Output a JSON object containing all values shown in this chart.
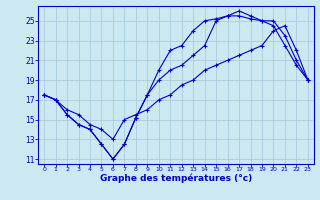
{
  "title": "",
  "xlabel": "Graphe des températures (°c)",
  "ylabel": "",
  "bg_color": "#cce8f0",
  "grid_color": "#aaccdd",
  "line_color": "#0000cc",
  "xlim": [
    -0.5,
    23.5
  ],
  "ylim": [
    10.5,
    26.5
  ],
  "xticks": [
    0,
    1,
    2,
    3,
    4,
    5,
    6,
    7,
    8,
    9,
    10,
    11,
    12,
    13,
    14,
    15,
    16,
    17,
    18,
    19,
    20,
    21,
    22,
    23
  ],
  "yticks": [
    11,
    13,
    15,
    17,
    19,
    21,
    23,
    25
  ],
  "line1_x": [
    0,
    1,
    2,
    3,
    4,
    5,
    6,
    7,
    8,
    9,
    10,
    11,
    12,
    13,
    14,
    15,
    16,
    17,
    18,
    19,
    20,
    21,
    22,
    23
  ],
  "line1_y": [
    17.5,
    17.0,
    15.5,
    14.5,
    14.0,
    12.5,
    11.0,
    12.5,
    15.2,
    17.5,
    19.0,
    20.0,
    20.5,
    21.5,
    22.5,
    25.0,
    25.5,
    26.0,
    25.5,
    25.0,
    24.5,
    22.5,
    20.5,
    19.0
  ],
  "line2_x": [
    0,
    1,
    2,
    3,
    4,
    5,
    6,
    7,
    8,
    9,
    10,
    11,
    12,
    13,
    14,
    15,
    16,
    17,
    18,
    19,
    20,
    21,
    22,
    23
  ],
  "line2_y": [
    17.5,
    17.0,
    15.5,
    14.5,
    14.0,
    12.5,
    11.0,
    12.5,
    15.2,
    17.5,
    20.0,
    22.0,
    22.5,
    24.0,
    25.0,
    25.2,
    25.5,
    25.5,
    25.2,
    25.0,
    25.0,
    23.5,
    21.0,
    19.0
  ],
  "line3_x": [
    0,
    1,
    2,
    3,
    4,
    5,
    6,
    7,
    8,
    9,
    10,
    11,
    12,
    13,
    14,
    15,
    16,
    17,
    18,
    19,
    20,
    21,
    22,
    23
  ],
  "line3_y": [
    17.5,
    17.0,
    16.0,
    15.5,
    14.5,
    14.0,
    13.0,
    15.0,
    15.5,
    16.0,
    17.0,
    17.5,
    18.5,
    19.0,
    20.0,
    20.5,
    21.0,
    21.5,
    22.0,
    22.5,
    24.0,
    24.5,
    22.0,
    19.0
  ]
}
